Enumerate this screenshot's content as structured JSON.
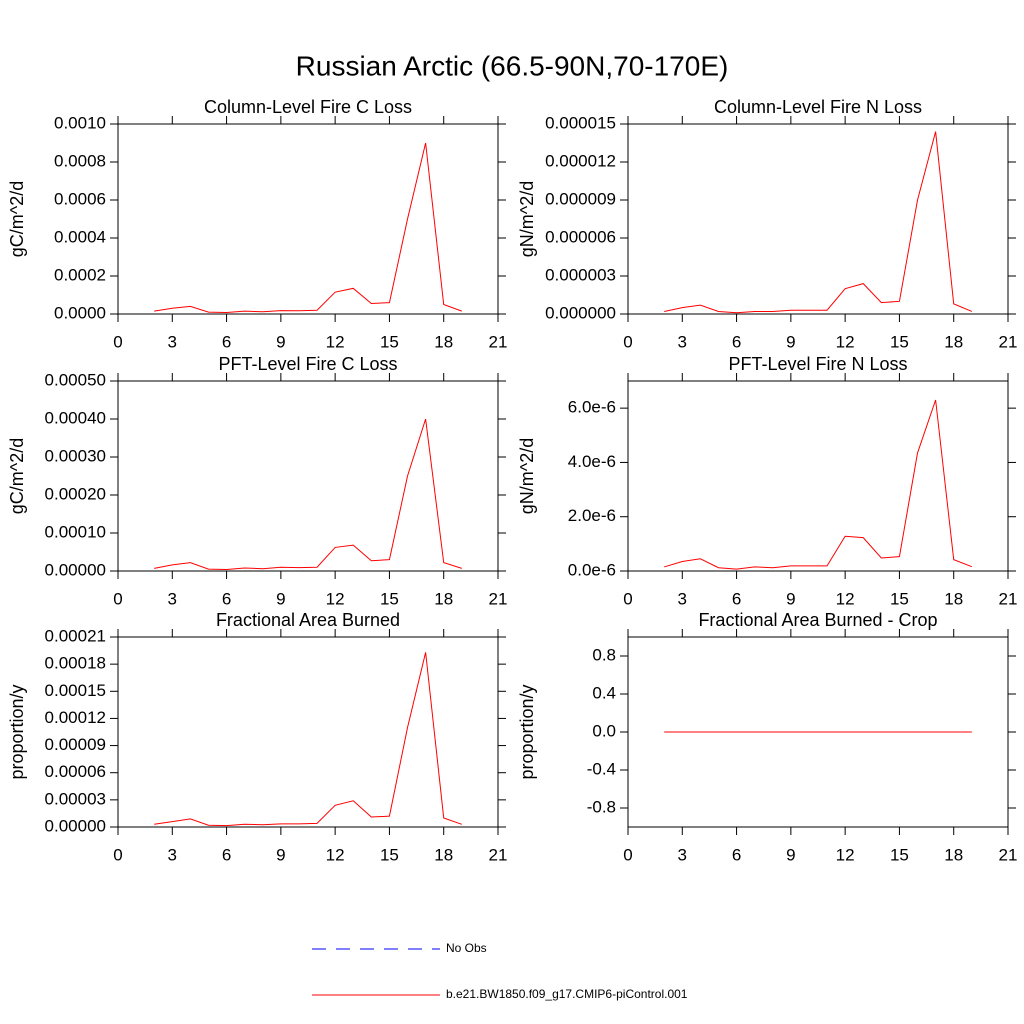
{
  "title": "Russian Arctic (66.5-90N,70-170E)",
  "legend": [
    {
      "name": "No Obs",
      "color": "#0000ff",
      "dash": true
    },
    {
      "name": "b.e21.BW1850.f09_g17.CMIP6-piControl.001",
      "color": "#ff0000",
      "dash": false
    }
  ],
  "chart_data": [
    {
      "type": "line",
      "title": "Column-Level Fire C Loss",
      "ylabel": "gC/m^2/d",
      "x": [
        2,
        3,
        4,
        5,
        6,
        7,
        8,
        9,
        10,
        11,
        12,
        13,
        14,
        15,
        16,
        17,
        18,
        19
      ],
      "series": [
        {
          "color": "#ff0000",
          "values": [
            1.5e-05,
            3e-05,
            4e-05,
            1e-05,
            8e-06,
            1.5e-05,
            1.2e-05,
            1.8e-05,
            1.7e-05,
            2e-05,
            0.000115,
            0.000135,
            5.5e-05,
            6e-05,
            0.0005,
            0.0009,
            5e-05,
            1.5e-05
          ]
        }
      ],
      "xlim": [
        0,
        21
      ],
      "xticks": [
        0,
        3,
        6,
        9,
        12,
        15,
        18,
        21
      ],
      "ylim": [
        0,
        0.001
      ],
      "yticks": [
        {
          "value": 0,
          "label": "0.0000"
        },
        {
          "value": 0.0002,
          "label": "0.0002"
        },
        {
          "value": 0.0004,
          "label": "0.0004"
        },
        {
          "value": 0.0006,
          "label": "0.0006"
        },
        {
          "value": 0.0008,
          "label": "0.0008"
        },
        {
          "value": 0.001,
          "label": "0.0010"
        }
      ]
    },
    {
      "type": "line",
      "title": "Column-Level Fire N Loss",
      "ylabel": "gN/m^2/d",
      "x": [
        2,
        3,
        4,
        5,
        6,
        7,
        8,
        9,
        10,
        11,
        12,
        13,
        14,
        15,
        16,
        17,
        18,
        19
      ],
      "series": [
        {
          "color": "#ff0000",
          "values": [
            2e-07,
            5e-07,
            7e-07,
            2e-07,
            1e-07,
            2e-07,
            2e-07,
            3e-07,
            3e-07,
            3e-07,
            2e-06,
            2.4e-06,
            9e-07,
            1e-06,
            9e-06,
            1.44e-05,
            8e-07,
            2e-07
          ]
        }
      ],
      "xlim": [
        0,
        21
      ],
      "xticks": [
        0,
        3,
        6,
        9,
        12,
        15,
        18,
        21
      ],
      "ylim": [
        0,
        1.5e-05
      ],
      "yticks": [
        {
          "value": 0,
          "label": "0.000000"
        },
        {
          "value": 3e-06,
          "label": "0.000003"
        },
        {
          "value": 6e-06,
          "label": "0.000006"
        },
        {
          "value": 9e-06,
          "label": "0.000009"
        },
        {
          "value": 1.2e-05,
          "label": "0.000012"
        },
        {
          "value": 1.5e-05,
          "label": "0.000015"
        }
      ]
    },
    {
      "type": "line",
      "title": "PFT-Level Fire C Loss",
      "ylabel": "gC/m^2/d",
      "x": [
        2,
        3,
        4,
        5,
        6,
        7,
        8,
        9,
        10,
        11,
        12,
        13,
        14,
        15,
        16,
        17,
        18,
        19
      ],
      "series": [
        {
          "color": "#ff0000",
          "values": [
            7e-06,
            1.6e-05,
            2.2e-05,
            5e-06,
            4e-06,
            8e-06,
            6e-06,
            1e-05,
            9e-06,
            1e-05,
            6.2e-05,
            6.8e-05,
            2.7e-05,
            3e-05,
            0.00025,
            0.0004,
            2.2e-05,
            7e-06
          ]
        }
      ],
      "xlim": [
        0,
        21
      ],
      "xticks": [
        0,
        3,
        6,
        9,
        12,
        15,
        18,
        21
      ],
      "ylim": [
        0,
        0.0005
      ],
      "yticks": [
        {
          "value": 0,
          "label": "0.00000"
        },
        {
          "value": 0.0001,
          "label": "0.00010"
        },
        {
          "value": 0.0002,
          "label": "0.00020"
        },
        {
          "value": 0.0003,
          "label": "0.00030"
        },
        {
          "value": 0.0004,
          "label": "0.00040"
        },
        {
          "value": 0.0005,
          "label": "0.00050"
        }
      ]
    },
    {
      "type": "line",
      "title": "PFT-Level Fire N Loss",
      "ylabel": "gN/m^2/d",
      "x": [
        2,
        3,
        4,
        5,
        6,
        7,
        8,
        9,
        10,
        11,
        12,
        13,
        14,
        15,
        16,
        17,
        18,
        19
      ],
      "series": [
        {
          "color": "#ff0000",
          "values": [
            1.5e-07,
            3.5e-07,
            4.5e-07,
            1.2e-07,
            7e-08,
            1.5e-07,
            1.2e-07,
            1.9e-07,
            1.9e-07,
            1.9e-07,
            1.28e-06,
            1.23e-06,
            4.8e-07,
            5.3e-07,
            4.35e-06,
            6.3e-06,
            4.2e-07,
            1.6e-07
          ]
        }
      ],
      "xlim": [
        0,
        21
      ],
      "xticks": [
        0,
        3,
        6,
        9,
        12,
        15,
        18,
        21
      ],
      "ylim": [
        0,
        7e-06
      ],
      "yticks": [
        {
          "value": 0,
          "label": "0.0e-6"
        },
        {
          "value": 2e-06,
          "label": "2.0e-6"
        },
        {
          "value": 4e-06,
          "label": "4.0e-6"
        },
        {
          "value": 6e-06,
          "label": "6.0e-6"
        }
      ]
    },
    {
      "type": "line",
      "title": "Fractional Area Burned",
      "ylabel": "proportion/y",
      "x": [
        2,
        3,
        4,
        5,
        6,
        7,
        8,
        9,
        10,
        11,
        12,
        13,
        14,
        15,
        16,
        17,
        18,
        19
      ],
      "series": [
        {
          "color": "#ff0000",
          "values": [
            3e-06,
            6e-06,
            9e-06,
            2e-06,
            1.5e-06,
            3e-06,
            2.5e-06,
            3.5e-06,
            3.5e-06,
            4e-06,
            2.4e-05,
            2.9e-05,
            1.1e-05,
            1.2e-05,
            0.00011,
            0.000193,
            1e-05,
            3e-06
          ]
        }
      ],
      "xlim": [
        0,
        21
      ],
      "xticks": [
        0,
        3,
        6,
        9,
        12,
        15,
        18,
        21
      ],
      "ylim": [
        0,
        0.00021
      ],
      "yticks": [
        {
          "value": 0,
          "label": "0.00000"
        },
        {
          "value": 3e-05,
          "label": "0.00003"
        },
        {
          "value": 6e-05,
          "label": "0.00006"
        },
        {
          "value": 9e-05,
          "label": "0.00009"
        },
        {
          "value": 0.00012,
          "label": "0.00012"
        },
        {
          "value": 0.00015,
          "label": "0.00015"
        },
        {
          "value": 0.00018,
          "label": "0.00018"
        },
        {
          "value": 0.00021,
          "label": "0.00021"
        }
      ]
    },
    {
      "type": "line",
      "title": "Fractional Area Burned - Crop",
      "ylabel": "proportion/y",
      "x": [
        2,
        3,
        4,
        5,
        6,
        7,
        8,
        9,
        10,
        11,
        12,
        13,
        14,
        15,
        16,
        17,
        18,
        19
      ],
      "series": [
        {
          "color": "#ff0000",
          "values": [
            0,
            0,
            0,
            0,
            0,
            0,
            0,
            0,
            0,
            0,
            0,
            0,
            0,
            0,
            0,
            0,
            0,
            0
          ]
        }
      ],
      "xlim": [
        0,
        21
      ],
      "xticks": [
        0,
        3,
        6,
        9,
        12,
        15,
        18,
        21
      ],
      "ylim": [
        -1,
        1
      ],
      "yticks": [
        {
          "value": -0.8,
          "label": "-0.8"
        },
        {
          "value": -0.4,
          "label": "-0.4"
        },
        {
          "value": 0,
          "label": "0.0"
        },
        {
          "value": 0.4,
          "label": "0.4"
        },
        {
          "value": 0.8,
          "label": "0.8"
        }
      ]
    }
  ]
}
